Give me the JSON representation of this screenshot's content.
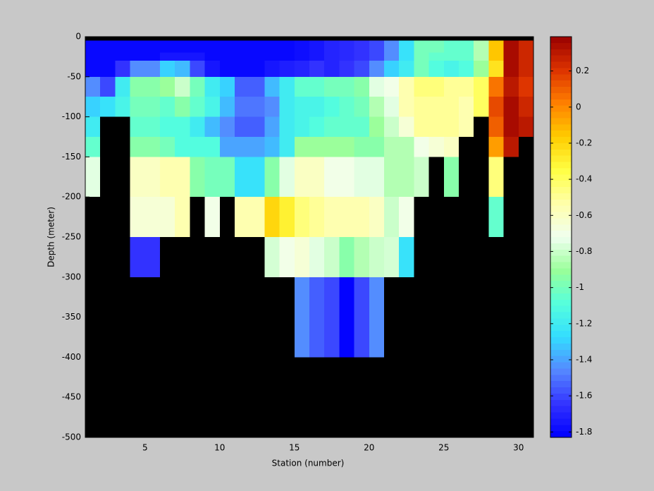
{
  "chart_data": {
    "type": "heatmap",
    "xlabel": "Station (number)",
    "ylabel": "Depth (meter)",
    "x_edges": [
      1,
      2,
      3,
      4,
      5,
      6,
      7,
      8,
      9,
      10,
      11,
      12,
      13,
      14,
      15,
      16,
      17,
      18,
      19,
      20,
      21,
      22,
      23,
      24,
      25,
      26,
      27,
      28,
      29,
      30,
      31
    ],
    "y_edges": [
      -5,
      -20,
      -30,
      -50,
      -75,
      -100,
      -125,
      -150,
      -200,
      -250,
      -300,
      -400
    ],
    "values": [
      [
        -1.8,
        -1.8,
        -1.8,
        -1.8,
        -1.8,
        -1.8,
        -1.8,
        -1.8,
        -1.8,
        -1.8,
        -1.8,
        -1.8,
        -1.8,
        -1.8,
        -1.78,
        -1.75,
        -1.7,
        -1.68,
        -1.65,
        -1.6,
        -1.45,
        -1.25,
        -1.0,
        -1.0,
        -1.05,
        -1.05,
        -0.85,
        -0.15,
        0.35,
        0.25
      ],
      [
        -1.8,
        -1.8,
        -1.8,
        -1.8,
        -1.8,
        -1.75,
        -1.75,
        -1.75,
        -1.8,
        -1.8,
        -1.8,
        -1.8,
        -1.8,
        -1.8,
        -1.78,
        -1.75,
        -1.7,
        -1.68,
        -1.65,
        -1.6,
        -1.45,
        -1.25,
        -1.0,
        -1.05,
        -1.05,
        -1.05,
        -0.85,
        -0.15,
        0.35,
        0.25
      ],
      [
        -1.8,
        -1.8,
        -1.65,
        -1.45,
        -1.45,
        -1.3,
        -1.35,
        -1.6,
        -1.75,
        -1.8,
        -1.8,
        -1.8,
        -1.75,
        -1.72,
        -1.7,
        -1.65,
        -1.7,
        -1.65,
        -1.6,
        -1.45,
        -1.3,
        -1.2,
        -1.0,
        -1.1,
        -1.15,
        -1.1,
        -0.9,
        -0.25,
        0.35,
        0.25
      ],
      [
        -1.45,
        -1.6,
        -1.2,
        -0.95,
        -0.95,
        -0.9,
        -0.8,
        -1.0,
        -1.2,
        -1.3,
        -1.55,
        -1.55,
        -1.35,
        -1.2,
        -1.05,
        -1.05,
        -1.0,
        -1.0,
        -0.95,
        -0.75,
        -0.7,
        -0.55,
        -0.45,
        -0.45,
        -0.5,
        -0.5,
        -0.4,
        0.05,
        0.3,
        0.2
      ],
      [
        -1.3,
        -1.25,
        -1.15,
        -1.0,
        -1.0,
        -1.05,
        -0.95,
        -1.05,
        -1.15,
        -1.35,
        -1.5,
        -1.5,
        -1.45,
        -1.2,
        -1.15,
        -1.15,
        -1.1,
        -1.05,
        -1.0,
        -0.85,
        -0.75,
        -0.55,
        -0.5,
        -0.5,
        -0.5,
        -0.55,
        -0.4,
        0.15,
        0.35,
        0.25
      ],
      [
        -1.2,
        null,
        null,
        -1.05,
        -1.05,
        -1.1,
        -1.1,
        -1.2,
        -1.35,
        -1.45,
        -1.55,
        -1.55,
        -1.4,
        -1.2,
        -1.15,
        -1.1,
        -1.05,
        -1.05,
        -1.05,
        -0.9,
        -0.8,
        -0.65,
        -0.5,
        -0.5,
        -0.5,
        -0.55,
        null,
        0.1,
        0.35,
        0.3
      ],
      [
        -1.05,
        null,
        null,
        -0.95,
        -0.95,
        -1.0,
        -1.1,
        -1.1,
        -1.1,
        -1.4,
        -1.4,
        -1.4,
        -1.35,
        -1.2,
        -0.9,
        -0.9,
        -0.9,
        -0.9,
        -0.95,
        -0.95,
        -0.85,
        -0.85,
        -0.7,
        -0.65,
        -0.6,
        null,
        null,
        -0.05,
        0.3,
        null
      ],
      [
        -0.75,
        null,
        null,
        -0.6,
        -0.6,
        -0.55,
        -0.55,
        -0.95,
        -1.0,
        -1.0,
        -1.25,
        -1.25,
        -0.95,
        -0.75,
        -0.6,
        -0.6,
        -0.7,
        -0.7,
        -0.75,
        -0.75,
        -0.85,
        -0.85,
        -0.8,
        null,
        -0.95,
        null,
        null,
        -0.45,
        null,
        null
      ],
      [
        null,
        null,
        null,
        -0.65,
        -0.65,
        -0.65,
        -0.55,
        null,
        -0.7,
        null,
        -0.55,
        -0.55,
        -0.2,
        -0.3,
        -0.45,
        -0.5,
        -0.55,
        -0.55,
        -0.55,
        -0.6,
        -0.8,
        -0.7,
        null,
        null,
        null,
        null,
        null,
        -1.05,
        null,
        null
      ],
      [
        null,
        null,
        null,
        -1.65,
        -1.65,
        null,
        null,
        null,
        null,
        null,
        null,
        null,
        -0.78,
        -0.7,
        -0.65,
        -0.75,
        -0.8,
        -0.95,
        -0.85,
        -0.8,
        -0.78,
        -1.25,
        null,
        null,
        null,
        null,
        null,
        null,
        null,
        null
      ],
      [
        null,
        null,
        null,
        null,
        null,
        null,
        null,
        null,
        null,
        null,
        null,
        null,
        null,
        null,
        -1.45,
        -1.55,
        -1.6,
        -1.82,
        -1.6,
        -1.45,
        null,
        null,
        null,
        null,
        null,
        null,
        null,
        null,
        null,
        null
      ]
    ],
    "xlim": [
      1,
      31
    ],
    "ylim": [
      -500,
      0
    ],
    "xticks": [
      5,
      10,
      15,
      20,
      25,
      30
    ],
    "yticks": [
      0,
      -50,
      -100,
      -150,
      -200,
      -250,
      -300,
      -350,
      -400,
      -450,
      -500
    ],
    "clim": [
      -1.83,
      0.39
    ],
    "colorbar_ticks": [
      0.2,
      0,
      -0.2,
      -0.4,
      -0.6,
      -0.8,
      -1,
      -1.2,
      -1.4,
      -1.6,
      -1.8
    ],
    "colormap": [
      "#0000ff",
      "#3333ff",
      "#5588ff",
      "#33ddff",
      "#55ffdd",
      "#99ff99",
      "#f0fff0",
      "#ffffaa",
      "#ffff44",
      "#ffcc00",
      "#ff8000",
      "#dd3300",
      "#990000"
    ],
    "background": "#000000"
  }
}
